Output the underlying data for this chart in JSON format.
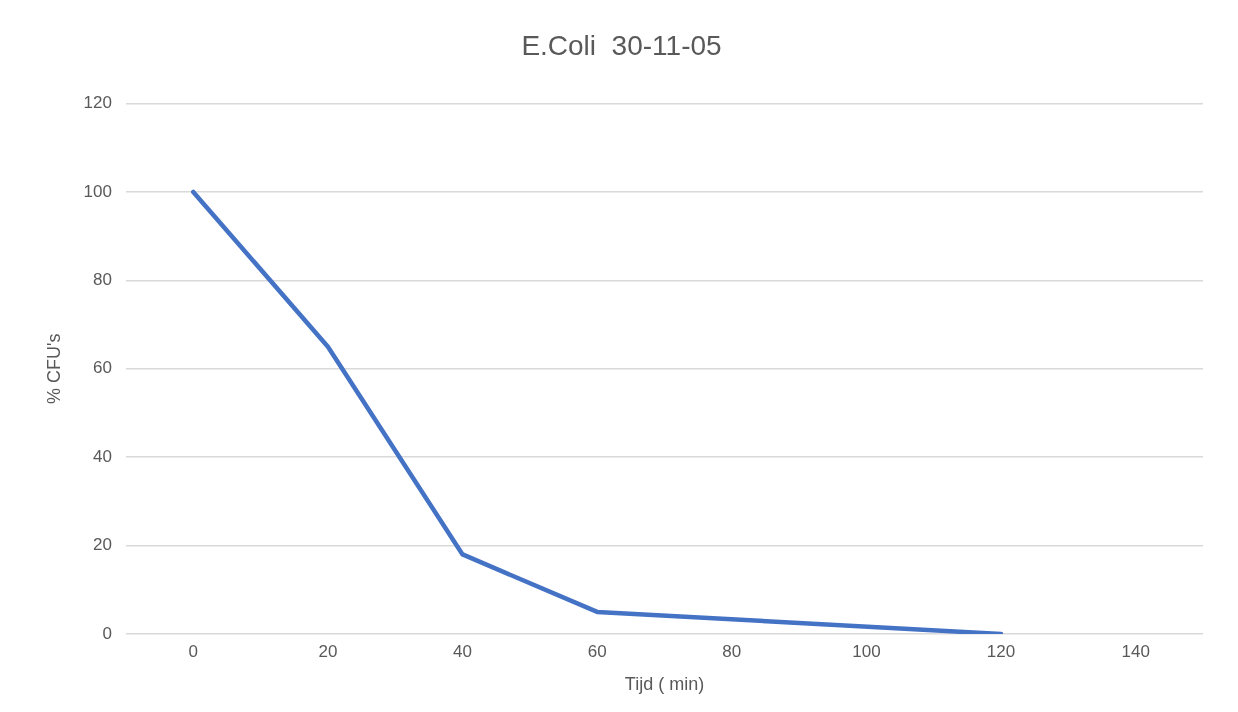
{
  "chart_data": {
    "type": "line",
    "title": "E.Coli  30-11-05",
    "xlabel": "Tijd ( min)",
    "ylabel": "% CFU's",
    "x": [
      0,
      20,
      40,
      60,
      120
    ],
    "series": [
      {
        "color": "#4472c4",
        "values": [
          100,
          65,
          18,
          5,
          0
        ]
      }
    ],
    "xlim": [
      -10,
      150
    ],
    "xticks": [
      0,
      20,
      40,
      60,
      80,
      100,
      120,
      140
    ],
    "ylim": [
      0,
      120
    ],
    "yticks": [
      0,
      20,
      40,
      60,
      80,
      100,
      120
    ],
    "grid": "y",
    "legend": false,
    "marker": "none",
    "line_style": "solid"
  }
}
